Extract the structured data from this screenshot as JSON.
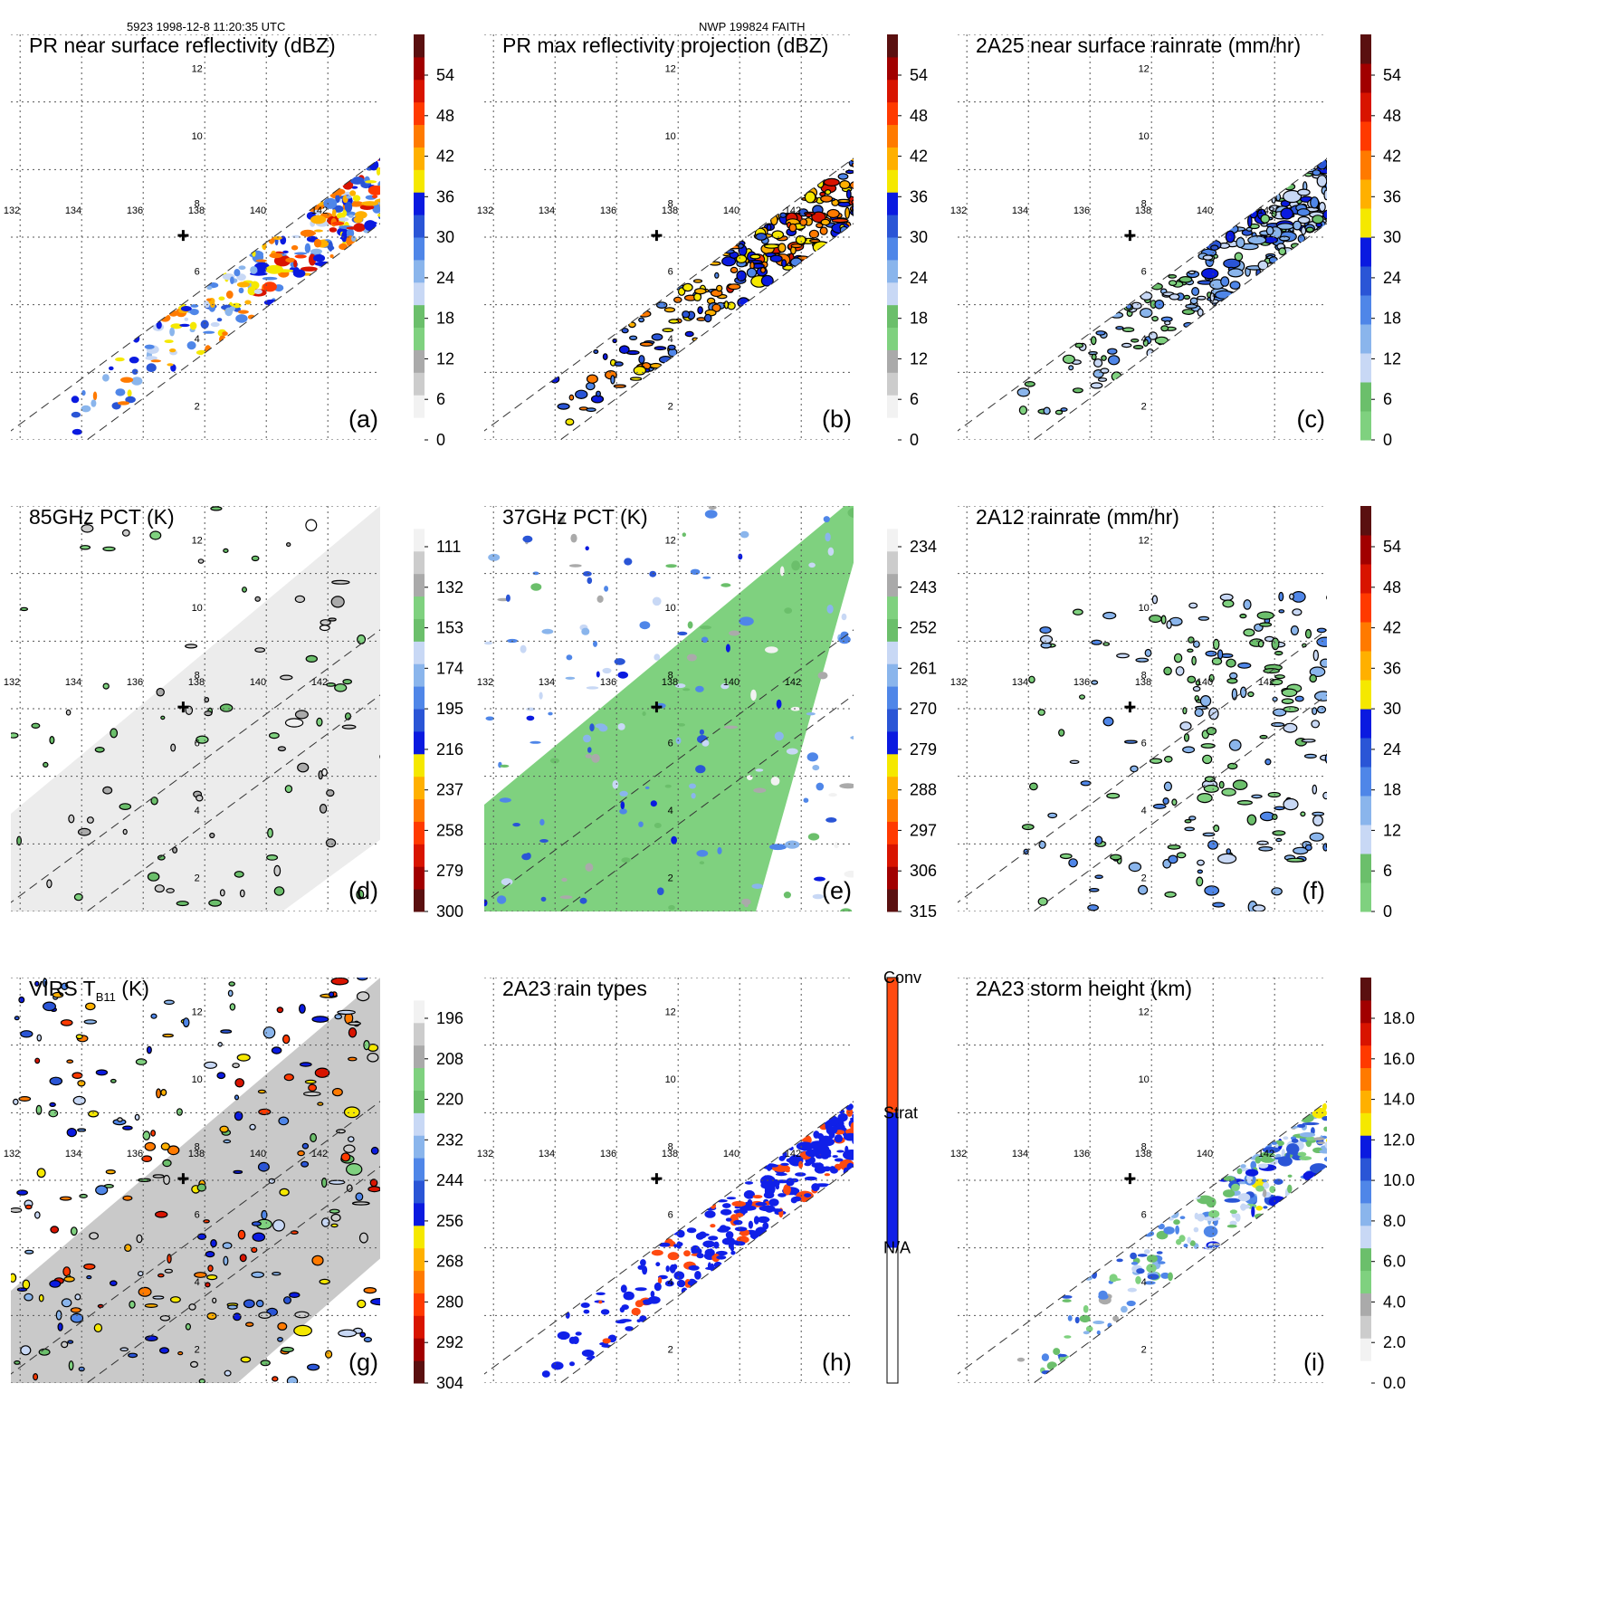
{
  "header": {
    "left": "5923 1998-12-8 11:20:35 UTC",
    "center": "NWP 199824 FAITH"
  },
  "chart_data": [
    {
      "type": "heatmap",
      "title": "PR near surface reflectivity (dBZ)",
      "label": "(a)",
      "field": "reflectivity",
      "swath": "pr",
      "colorbar": {
        "ticks": [
          "54",
          "48",
          "42",
          "36",
          "30",
          "24",
          "18",
          "12",
          "6",
          "0"
        ],
        "colors": [
          "#ffffff",
          "#f2f2f2",
          "#cccccc",
          "#aaaaaa",
          "#7fd17f",
          "#6bbf6b",
          "#c8d8f5",
          "#8ab5ec",
          "#4f86e8",
          "#2a55d6",
          "#0a1ae0",
          "#f5e800",
          "#ffb000",
          "#ff7a00",
          "#ff3a00",
          "#d81400",
          "#a10000",
          "#5a1010"
        ]
      }
    },
    {
      "type": "heatmap",
      "title": "PR max reflectivity projection (dBZ)",
      "label": "(b)",
      "field": "maxref",
      "swath": "pr",
      "colorbar": {
        "ticks": [
          "54",
          "48",
          "42",
          "36",
          "30",
          "24",
          "18",
          "12",
          "6",
          "0"
        ],
        "colors": [
          "#ffffff",
          "#f2f2f2",
          "#cccccc",
          "#aaaaaa",
          "#7fd17f",
          "#6bbf6b",
          "#c8d8f5",
          "#8ab5ec",
          "#4f86e8",
          "#2a55d6",
          "#0a1ae0",
          "#f5e800",
          "#ffb000",
          "#ff7a00",
          "#ff3a00",
          "#d81400",
          "#a10000",
          "#5a1010"
        ]
      }
    },
    {
      "type": "heatmap",
      "title": "2A25 near surface rainrate (mm/hr)",
      "label": "(c)",
      "field": "rainrate",
      "swath": "pr",
      "colorbar": {
        "ticks": [
          "54",
          "48",
          "42",
          "36",
          "30",
          "24",
          "18",
          "12",
          "6",
          "0"
        ],
        "colors": [
          "#7fd17f",
          "#6bbf6b",
          "#c8d8f5",
          "#8ab5ec",
          "#4f86e8",
          "#2a55d6",
          "#0a1ae0",
          "#f5e800",
          "#ffb000",
          "#ff7a00",
          "#ff3a00",
          "#d81400",
          "#a10000",
          "#5a1010"
        ]
      }
    },
    {
      "type": "heatmap",
      "title": "85GHz PCT (K)",
      "label": "(d)",
      "field": "pct85",
      "swath": "tmi",
      "colorbar": {
        "ticks": [
          "111",
          "132",
          "153",
          "174",
          "195",
          "216",
          "237",
          "258",
          "279",
          "300"
        ],
        "colors": [
          "#5a1010",
          "#a10000",
          "#d81400",
          "#ff3a00",
          "#ff7a00",
          "#ffb000",
          "#f5e800",
          "#0a1ae0",
          "#2a55d6",
          "#4f86e8",
          "#8ab5ec",
          "#c8d8f5",
          "#6bbf6b",
          "#7fd17f",
          "#aaaaaa",
          "#cccccc",
          "#f2f2f2",
          "#ffffff"
        ]
      }
    },
    {
      "type": "heatmap",
      "title": "37GHz PCT (K)",
      "label": "(e)",
      "field": "pct37",
      "swath": "tmi",
      "colorbar": {
        "ticks": [
          "234",
          "243",
          "252",
          "261",
          "270",
          "279",
          "288",
          "297",
          "306",
          "315"
        ],
        "colors": [
          "#5a1010",
          "#a10000",
          "#d81400",
          "#ff3a00",
          "#ff7a00",
          "#ffb000",
          "#f5e800",
          "#0a1ae0",
          "#2a55d6",
          "#4f86e8",
          "#8ab5ec",
          "#c8d8f5",
          "#6bbf6b",
          "#7fd17f",
          "#aaaaaa",
          "#cccccc",
          "#f2f2f2",
          "#ffffff"
        ]
      }
    },
    {
      "type": "heatmap",
      "title": "2A12 rainrate (mm/hr)",
      "label": "(f)",
      "field": "rain2a12",
      "swath": "none",
      "colorbar": {
        "ticks": [
          "54",
          "48",
          "42",
          "36",
          "30",
          "24",
          "18",
          "12",
          "6",
          "0"
        ],
        "colors": [
          "#7fd17f",
          "#6bbf6b",
          "#c8d8f5",
          "#8ab5ec",
          "#4f86e8",
          "#2a55d6",
          "#0a1ae0",
          "#f5e800",
          "#ffb000",
          "#ff7a00",
          "#ff3a00",
          "#d81400",
          "#a10000",
          "#5a1010"
        ]
      }
    },
    {
      "type": "heatmap",
      "title": "VIRS T",
      "title_sub": "B11",
      "title_tail": " (K)",
      "label": "(g)",
      "field": "virs",
      "swath": "virs",
      "colorbar": {
        "ticks": [
          "196",
          "208",
          "220",
          "232",
          "244",
          "256",
          "268",
          "280",
          "292",
          "304"
        ],
        "colors": [
          "#5a1010",
          "#a10000",
          "#d81400",
          "#ff3a00",
          "#ff7a00",
          "#ffb000",
          "#f5e800",
          "#0a1ae0",
          "#2a55d6",
          "#4f86e8",
          "#8ab5ec",
          "#c8d8f5",
          "#6bbf6b",
          "#7fd17f",
          "#aaaaaa",
          "#cccccc",
          "#f2f2f2",
          "#ffffff"
        ]
      }
    },
    {
      "type": "heatmap",
      "title": "2A23 rain types",
      "label": "(h)",
      "field": "raintype",
      "swath": "pr",
      "colorbar": {
        "categorical": true,
        "ticks": [
          "Conv",
          "Strat",
          "N/A"
        ],
        "colors": [
          "#ff4a10",
          "#1020e8",
          "#ffffff"
        ]
      }
    },
    {
      "type": "heatmap",
      "title": "2A23 storm height (km)",
      "label": "(i)",
      "field": "height",
      "swath": "pr",
      "colorbar": {
        "ticks": [
          "18.0",
          "16.0",
          "14.0",
          "12.0",
          "10.0",
          "8.0",
          "6.0",
          "4.0",
          "2.0",
          "0.0"
        ],
        "colors": [
          "#ffffff",
          "#f2f2f2",
          "#cccccc",
          "#aaaaaa",
          "#7fd17f",
          "#6bbf6b",
          "#c8d8f5",
          "#8ab5ec",
          "#4f86e8",
          "#2a55d6",
          "#0a1ae0",
          "#f5e800",
          "#ffb000",
          "#ff7a00",
          "#ff3a00",
          "#d81400",
          "#a10000",
          "#5a1010"
        ]
      }
    }
  ],
  "axes": {
    "lon_labels": [
      "132",
      "134",
      "136",
      "138",
      "140",
      "142"
    ],
    "lat_labels": [
      "12",
      "10",
      "8",
      "6",
      "4",
      "2"
    ],
    "lon_range": [
      132,
      144
    ],
    "lat_range": [
      1,
      13
    ],
    "center_marker": [
      137.6,
      7.05
    ]
  }
}
